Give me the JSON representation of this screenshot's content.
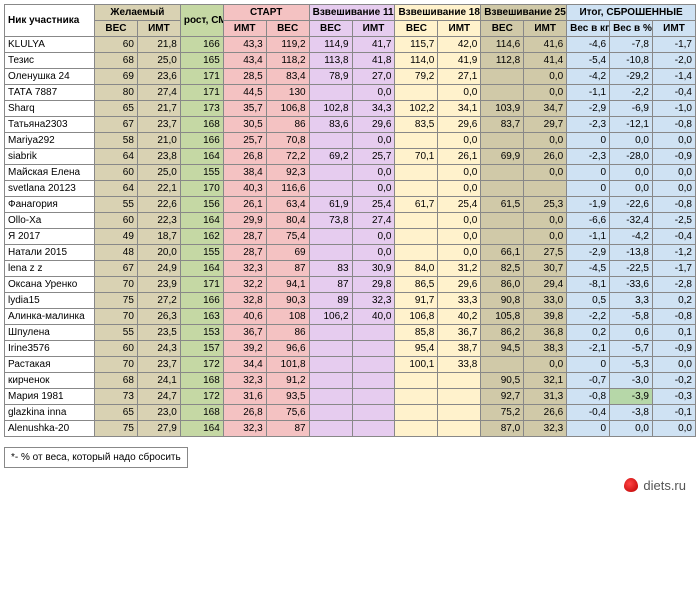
{
  "footer_brand": "diets.ru",
  "footnote": "*- % от веса, который надо сбросить",
  "colors": {
    "header_bg": "#ffffff",
    "desired": "#d9d2b3",
    "height": "#c5d8a4",
    "start": "#f4c2c2",
    "weigh1": "#e6ccef",
    "weigh2": "#fff2cc",
    "weigh3": "#d0c9a8",
    "result": "#cfe2f3",
    "name": "#ffffff"
  },
  "header_groups": [
    {
      "label": "Ник участника",
      "span": 1,
      "sub": [
        ""
      ],
      "color": "name",
      "key": "name",
      "class": "name-col"
    },
    {
      "label": "Желаемый",
      "span": 2,
      "sub": [
        "ВЕС",
        "ИМТ"
      ],
      "color": "desired"
    },
    {
      "label": "рост, СМ",
      "span": 1,
      "sub": [
        ""
      ],
      "color": "height"
    },
    {
      "label": "СТАРТ",
      "span": 2,
      "sub": [
        "ИМТ",
        "ВЕС"
      ],
      "color": "start"
    },
    {
      "label": "Взвешивание 11.04.2017",
      "span": 2,
      "sub": [
        "ВЕС",
        "ИМТ"
      ],
      "color": "weigh1"
    },
    {
      "label": "Взвешивание 18.04.2017",
      "span": 2,
      "sub": [
        "ВЕС",
        "ИМТ"
      ],
      "color": "weigh2"
    },
    {
      "label": "Взвешивание 25.04.2017",
      "span": 2,
      "sub": [
        "ВЕС",
        "ИМТ"
      ],
      "color": "weigh3"
    },
    {
      "label": "Итог, СБРОШЕННЫЕ",
      "span": 3,
      "sub": [
        "Вес в кг",
        "Вес в % *",
        "ИМТ"
      ],
      "color": "result"
    }
  ],
  "col_colors": [
    "name",
    "desired",
    "desired",
    "height",
    "start",
    "start",
    "weigh1",
    "weigh1",
    "weigh2",
    "weigh2",
    "weigh3",
    "weigh3",
    "result",
    "result",
    "result"
  ],
  "rows": [
    {
      "d": [
        "KLULYA",
        "60",
        "21,8",
        "166",
        "43,3",
        "119,2",
        "114,9",
        "41,7",
        "115,7",
        "42,0",
        "114,6",
        "41,6",
        "-4,6",
        "-7,8",
        "-1,7"
      ]
    },
    {
      "d": [
        "Тезис",
        "68",
        "25,0",
        "165",
        "43,4",
        "118,2",
        "113,8",
        "41,8",
        "114,0",
        "41,9",
        "112,8",
        "41,4",
        "-5,4",
        "-10,8",
        "-2,0"
      ]
    },
    {
      "d": [
        "Оленушка 24",
        "69",
        "23,6",
        "171",
        "28,5",
        "83,4",
        "78,9",
        "27,0",
        "79,2",
        "27,1",
        "",
        "0,0",
        "-4,2",
        "-29,2",
        "-1,4"
      ]
    },
    {
      "d": [
        "ТАТА 7887",
        "80",
        "27,4",
        "171",
        "44,5",
        "130",
        "",
        "0,0",
        "",
        "0,0",
        "",
        "0,0",
        "-1,1",
        "-2,2",
        "-0,4"
      ]
    },
    {
      "d": [
        "Sharq",
        "65",
        "21,7",
        "173",
        "35,7",
        "106,8",
        "102,8",
        "34,3",
        "102,2",
        "34,1",
        "103,9",
        "34,7",
        "-2,9",
        "-6,9",
        "-1,0"
      ]
    },
    {
      "d": [
        "Татьяна2303",
        "67",
        "23,7",
        "168",
        "30,5",
        "86",
        "83,6",
        "29,6",
        "83,5",
        "29,6",
        "83,7",
        "29,7",
        "-2,3",
        "-12,1",
        "-0,8"
      ]
    },
    {
      "d": [
        "Mariya292",
        "58",
        "21,0",
        "166",
        "25,7",
        "70,8",
        "",
        "0,0",
        "",
        "0,0",
        "",
        "0,0",
        "0",
        "0,0",
        "0,0"
      ]
    },
    {
      "d": [
        "siabrik",
        "64",
        "23,8",
        "164",
        "26,8",
        "72,2",
        "69,2",
        "25,7",
        "70,1",
        "26,1",
        "69,9",
        "26,0",
        "-2,3",
        "-28,0",
        "-0,9"
      ]
    },
    {
      "d": [
        "Майская Елена",
        "60",
        "25,0",
        "155",
        "38,4",
        "92,3",
        "",
        "0,0",
        "",
        "0,0",
        "",
        "0,0",
        "0",
        "0,0",
        "0,0"
      ]
    },
    {
      "d": [
        "svetlana 20123",
        "64",
        "22,1",
        "170",
        "40,3",
        "116,6",
        "",
        "0,0",
        "",
        "0,0",
        "",
        "",
        "0",
        "0,0",
        "0,0"
      ]
    },
    {
      "d": [
        "Фанагория",
        "55",
        "22,6",
        "156",
        "26,1",
        "63,4",
        "61,9",
        "25,4",
        "61,7",
        "25,4",
        "61,5",
        "25,3",
        "-1,9",
        "-22,6",
        "-0,8"
      ]
    },
    {
      "d": [
        "Ollo-Xa",
        "60",
        "22,3",
        "164",
        "29,9",
        "80,4",
        "73,8",
        "27,4",
        "",
        "0,0",
        "",
        "0,0",
        "-6,6",
        "-32,4",
        "-2,5"
      ]
    },
    {
      "d": [
        "Я 2017",
        "49",
        "18,7",
        "162",
        "28,7",
        "75,4",
        "",
        "0,0",
        "",
        "0,0",
        "",
        "0,0",
        "-1,1",
        "-4,2",
        "-0,4"
      ]
    },
    {
      "d": [
        "Натали 2015",
        "48",
        "20,0",
        "155",
        "28,7",
        "69",
        "",
        "0,0",
        "",
        "0,0",
        "66,1",
        "27,5",
        "-2,9",
        "-13,8",
        "-1,2"
      ]
    },
    {
      "d": [
        "lena z z",
        "67",
        "24,9",
        "164",
        "32,3",
        "87",
        "83",
        "30,9",
        "84,0",
        "31,2",
        "82,5",
        "30,7",
        "-4,5",
        "-22,5",
        "-1,7"
      ]
    },
    {
      "d": [
        "Оксана Уренко",
        "70",
        "23,9",
        "171",
        "32,2",
        "94,1",
        "87",
        "29,8",
        "86,5",
        "29,6",
        "86,0",
        "29,4",
        "-8,1",
        "-33,6",
        "-2,8"
      ]
    },
    {
      "d": [
        "lydia15",
        "75",
        "27,2",
        "166",
        "32,8",
        "90,3",
        "89",
        "32,3",
        "91,7",
        "33,3",
        "90,8",
        "33,0",
        "0,5",
        "3,3",
        "0,2"
      ]
    },
    {
      "d": [
        "Алинка-малинка",
        "70",
        "26,3",
        "163",
        "40,6",
        "108",
        "106,2",
        "40,0",
        "106,8",
        "40,2",
        "105,8",
        "39,8",
        "-2,2",
        "-5,8",
        "-0,8"
      ]
    },
    {
      "d": [
        "Шпулена",
        "55",
        "23,5",
        "153",
        "36,7",
        "86",
        "",
        "",
        "85,8",
        "36,7",
        "86,2",
        "36,8",
        "0,2",
        "0,6",
        "0,1"
      ]
    },
    {
      "d": [
        "Irine3576",
        "60",
        "24,3",
        "157",
        "39,2",
        "96,6",
        "",
        "",
        "95,4",
        "38,7",
        "94,5",
        "38,3",
        "-2,1",
        "-5,7",
        "-0,9"
      ]
    },
    {
      "d": [
        "Растакая",
        "70",
        "23,7",
        "172",
        "34,4",
        "101,8",
        "",
        "",
        "100,1",
        "33,8",
        "",
        "0,0",
        "0",
        "-5,3",
        "0,0"
      ]
    },
    {
      "d": [
        "кирченок",
        "68",
        "24,1",
        "168",
        "32,3",
        "91,2",
        "",
        "",
        "",
        "",
        "90,5",
        "32,1",
        "-0,7",
        "-3,0",
        "-0,2"
      ]
    },
    {
      "d": [
        "Мария 1981",
        "73",
        "24,7",
        "172",
        "31,6",
        "93,5",
        "",
        "",
        "",
        "",
        "92,7",
        "31,3",
        "-0,8",
        "-3,9",
        "-0,3"
      ],
      "hl": [
        13
      ]
    },
    {
      "d": [
        "glazkina inna",
        "65",
        "23,0",
        "168",
        "26,8",
        "75,6",
        "",
        "",
        "",
        "",
        "75,2",
        "26,6",
        "-0,4",
        "-3,8",
        "-0,1"
      ]
    },
    {
      "d": [
        "Alenushka-20",
        "75",
        "27,9",
        "164",
        "32,3",
        "87",
        "",
        "",
        "",
        "",
        "87,0",
        "32,3",
        "0",
        "0,0",
        "0,0"
      ]
    }
  ]
}
